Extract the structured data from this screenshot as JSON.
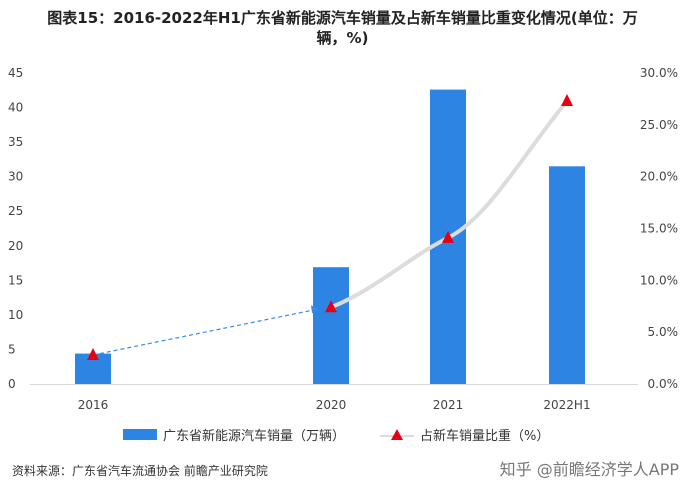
{
  "title_line1": "图表15：2016-2022年H1广东省新能源汽车销量及占新车销量比重变化情况(单位：万",
  "title_line2": "辆，%)",
  "chart_data": {
    "type": "bar",
    "categories": [
      "2016",
      "2020",
      "2021",
      "2022H1"
    ],
    "series": [
      {
        "name": "广东省新能源汽车销量（万辆）",
        "type": "bar",
        "axis": "left",
        "values": [
          4.4,
          16.9,
          42.6,
          31.5
        ],
        "color": "#2e84e3"
      },
      {
        "name": "占新车销量比重（%）",
        "type": "line",
        "axis": "right",
        "values": [
          2.8,
          7.4,
          14.1,
          27.3
        ],
        "marker_color": "#e60012",
        "line_color": "#dcdcdc"
      }
    ],
    "y_left": {
      "lim": [
        0,
        45
      ],
      "ticks": [
        "0",
        "5",
        "10",
        "15",
        "20",
        "25",
        "30",
        "35",
        "40",
        "45"
      ]
    },
    "y_right": {
      "lim": [
        0,
        30
      ],
      "ticks": [
        "0.0%",
        "5.0%",
        "10.0%",
        "15.0%",
        "20.0%",
        "25.0%",
        "30.0%"
      ]
    },
    "grid": false,
    "legend_position": "bottom"
  },
  "source": "资料来源：广东省汽车流通协会 前瞻产业研究院",
  "brand": "知乎 @前瞻经济学人APP"
}
